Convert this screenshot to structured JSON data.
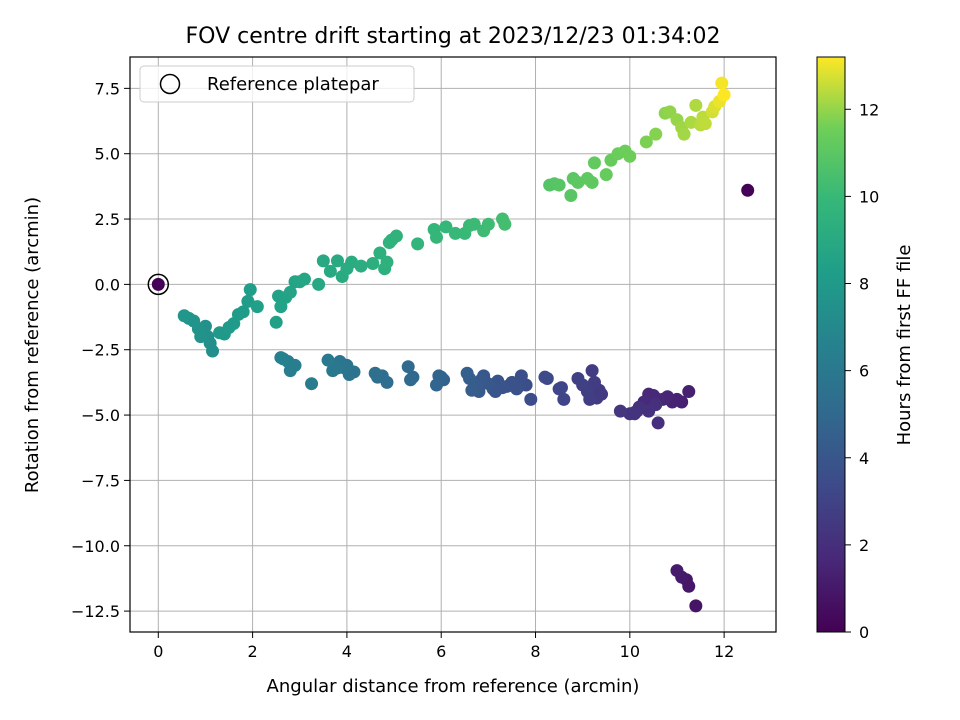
{
  "chart_data": {
    "type": "scatter",
    "title": "FOV centre drift starting at 2023/12/23 01:34:02",
    "xlabel": "Angular distance from reference (arcmin)",
    "ylabel": "Rotation from reference (arcmin)",
    "colorbar_label": "Hours from first FF file",
    "xlim": [
      -0.6,
      13.1
    ],
    "ylim": [
      -13.3,
      8.7
    ],
    "clim": [
      0,
      13.2
    ],
    "x_ticks": [
      0,
      2,
      4,
      6,
      8,
      10,
      12
    ],
    "x_tick_labels": [
      "0",
      "2",
      "4",
      "6",
      "8",
      "10",
      "12"
    ],
    "y_ticks": [
      7.5,
      5.0,
      2.5,
      0.0,
      -2.5,
      -5.0,
      -7.5,
      -10.0,
      -12.5
    ],
    "y_tick_labels": [
      "7.5",
      "5.0",
      "2.5",
      "0.0",
      "−2.5",
      "−5.0",
      "−7.5",
      "−10.0",
      "−12.5"
    ],
    "cbar_ticks": [
      0,
      2,
      4,
      6,
      8,
      10,
      12
    ],
    "cbar_tick_labels": [
      "0",
      "2",
      "4",
      "6",
      "8",
      "10",
      "12"
    ],
    "grid": true,
    "legend": {
      "placement": "top-left",
      "entries": [
        "Reference platepar"
      ]
    },
    "colormap": "viridis",
    "reference_point": {
      "x": 0,
      "y": 0,
      "c": 0.1
    },
    "series": [
      {
        "x": [
          12.5,
          11.4,
          11.25,
          11.2,
          11.1,
          11.0,
          11.25,
          11.1,
          11.0,
          10.9,
          10.8,
          10.7,
          10.6,
          10.5,
          10.4,
          10.3,
          10.2,
          10.15,
          10.1,
          10.6,
          10.55,
          10.4,
          10.2,
          10.1,
          10.0,
          9.8,
          9.4,
          9.35,
          9.3,
          9.25,
          9.2,
          9.15,
          9.1,
          9.0,
          8.9,
          8.6,
          8.55,
          8.5,
          8.25,
          8.2,
          7.9,
          7.8,
          7.7,
          7.65,
          7.6,
          7.5,
          7.4,
          7.3,
          7.2,
          7.15,
          7.1,
          7.0,
          6.9,
          6.85,
          6.8,
          6.75,
          6.7,
          6.65,
          6.6,
          6.55,
          6.05,
          6.0,
          5.95,
          5.9,
          5.4,
          5.35,
          5.3,
          4.85,
          4.75,
          4.65,
          4.6,
          4.15,
          4.05,
          4.0,
          3.95,
          3.9,
          3.85,
          3.8,
          3.7,
          3.6,
          3.25,
          2.9,
          2.8,
          2.75,
          2.65,
          2.6,
          1.15,
          1.1,
          1.05,
          1.0,
          0.95,
          0.9,
          0.85,
          0.75,
          0.65,
          0.55,
          1.3,
          1.4,
          1.5,
          1.6,
          1.7,
          1.8,
          1.9,
          1.95,
          2.1,
          2.5,
          2.55,
          2.6,
          2.7,
          2.8,
          2.9,
          3.0,
          3.1,
          3.4,
          3.5,
          3.65,
          3.8,
          3.9,
          4.0,
          4.1,
          4.3,
          4.55,
          4.7,
          4.8,
          4.85,
          4.9,
          4.95,
          5.05,
          5.5,
          5.85,
          5.9,
          6.1,
          6.3,
          6.5,
          6.6,
          6.7,
          6.9,
          7.0,
          7.3,
          7.35,
          8.3,
          8.4,
          8.5,
          8.75,
          8.8,
          8.9,
          9.1,
          9.2,
          9.25,
          9.5,
          9.6,
          9.75,
          9.9,
          10.0,
          10.35,
          10.55,
          10.75,
          10.85,
          11.0,
          11.1,
          11.15,
          11.3,
          11.4,
          11.5,
          11.55,
          11.6,
          11.75,
          11.8,
          11.9,
          11.95,
          12.0
        ],
        "y": [
          3.6,
          -12.3,
          -11.55,
          -11.3,
          -11.2,
          -10.95,
          -4.1,
          -4.5,
          -4.4,
          -4.5,
          -4.3,
          -4.4,
          -4.4,
          -4.25,
          -4.2,
          -4.5,
          -4.7,
          -4.85,
          -4.9,
          -5.3,
          -4.6,
          -4.85,
          -4.7,
          -4.95,
          -4.95,
          -4.85,
          -4.2,
          -4.05,
          -4.35,
          -3.75,
          -3.3,
          -4.4,
          -4.1,
          -3.85,
          -3.6,
          -4.4,
          -3.95,
          -4.0,
          -3.6,
          -3.55,
          -4.4,
          -3.85,
          -3.5,
          -3.9,
          -4.0,
          -3.75,
          -3.9,
          -3.95,
          -3.7,
          -4.1,
          -4.0,
          -3.8,
          -3.5,
          -3.65,
          -4.1,
          -3.85,
          -3.95,
          -4.05,
          -3.6,
          -3.4,
          -3.65,
          -3.55,
          -3.5,
          -3.85,
          -3.55,
          -3.65,
          -3.15,
          -3.75,
          -3.5,
          -3.55,
          -3.4,
          -3.35,
          -3.45,
          -3.1,
          -3.2,
          -3.05,
          -2.95,
          -3.2,
          -3.3,
          -2.9,
          -3.8,
          -3.1,
          -3.3,
          -2.95,
          -2.85,
          -2.8,
          -2.55,
          -2.25,
          -2.0,
          -1.6,
          -1.85,
          -2.0,
          -1.7,
          -1.4,
          -1.3,
          -1.2,
          -1.85,
          -1.9,
          -1.65,
          -1.5,
          -1.15,
          -1.05,
          -0.65,
          -0.2,
          -0.85,
          -1.45,
          -0.45,
          -0.85,
          -0.5,
          -0.3,
          0.1,
          0.1,
          0.2,
          0.0,
          0.9,
          0.5,
          0.9,
          0.3,
          0.6,
          0.85,
          0.7,
          0.8,
          1.2,
          0.6,
          0.85,
          1.6,
          1.7,
          1.85,
          1.55,
          2.1,
          1.8,
          2.2,
          1.95,
          1.95,
          2.25,
          2.3,
          2.05,
          2.3,
          2.5,
          2.3,
          3.8,
          3.85,
          3.8,
          3.4,
          4.05,
          3.9,
          4.05,
          3.9,
          4.65,
          4.2,
          4.75,
          5.0,
          5.1,
          4.9,
          5.45,
          5.75,
          6.55,
          6.6,
          6.3,
          6.0,
          5.75,
          6.2,
          6.85,
          6.1,
          6.4,
          6.15,
          6.6,
          6.8,
          7.0,
          7.7,
          7.25
        ],
        "c": [
          0.1,
          0.8,
          0.9,
          0.95,
          1.0,
          1.1,
          1.3,
          1.35,
          1.4,
          1.45,
          1.5,
          1.55,
          1.6,
          1.65,
          1.7,
          1.75,
          1.8,
          1.85,
          1.9,
          2.0,
          2.05,
          2.1,
          2.15,
          2.2,
          2.25,
          2.35,
          2.5,
          2.55,
          2.6,
          2.65,
          2.7,
          2.75,
          2.8,
          2.85,
          2.9,
          3.1,
          3.15,
          3.2,
          3.3,
          3.35,
          3.5,
          3.55,
          3.6,
          3.65,
          3.7,
          3.75,
          3.8,
          3.85,
          3.9,
          3.95,
          4.0,
          4.05,
          4.1,
          4.15,
          4.2,
          4.25,
          4.3,
          4.35,
          4.4,
          4.45,
          4.7,
          4.75,
          4.8,
          4.85,
          5.0,
          5.05,
          5.1,
          5.3,
          5.35,
          5.4,
          5.45,
          5.6,
          5.65,
          5.7,
          5.75,
          5.8,
          5.85,
          5.9,
          5.95,
          6.0,
          6.2,
          6.3,
          6.35,
          6.4,
          6.45,
          6.5,
          7.3,
          7.35,
          7.4,
          7.45,
          7.5,
          7.55,
          7.6,
          7.65,
          7.7,
          7.75,
          7.9,
          7.95,
          8.0,
          8.05,
          8.1,
          8.15,
          8.2,
          8.25,
          8.3,
          8.4,
          8.45,
          8.5,
          8.55,
          8.6,
          8.65,
          8.7,
          8.75,
          8.85,
          8.9,
          8.95,
          9.0,
          9.05,
          9.1,
          9.15,
          9.2,
          9.3,
          9.35,
          9.4,
          9.45,
          9.5,
          9.55,
          9.6,
          9.7,
          9.8,
          9.85,
          9.9,
          9.95,
          10.0,
          10.05,
          10.1,
          10.15,
          10.2,
          10.3,
          10.35,
          10.8,
          10.85,
          10.9,
          10.95,
          11.0,
          11.05,
          11.1,
          11.15,
          11.2,
          11.3,
          11.35,
          11.4,
          11.45,
          11.5,
          11.7,
          11.8,
          11.9,
          11.95,
          12.0,
          12.1,
          12.15,
          12.25,
          12.3,
          12.4,
          12.45,
          12.5,
          12.7,
          12.8,
          13.0,
          13.1,
          13.2
        ]
      }
    ]
  }
}
